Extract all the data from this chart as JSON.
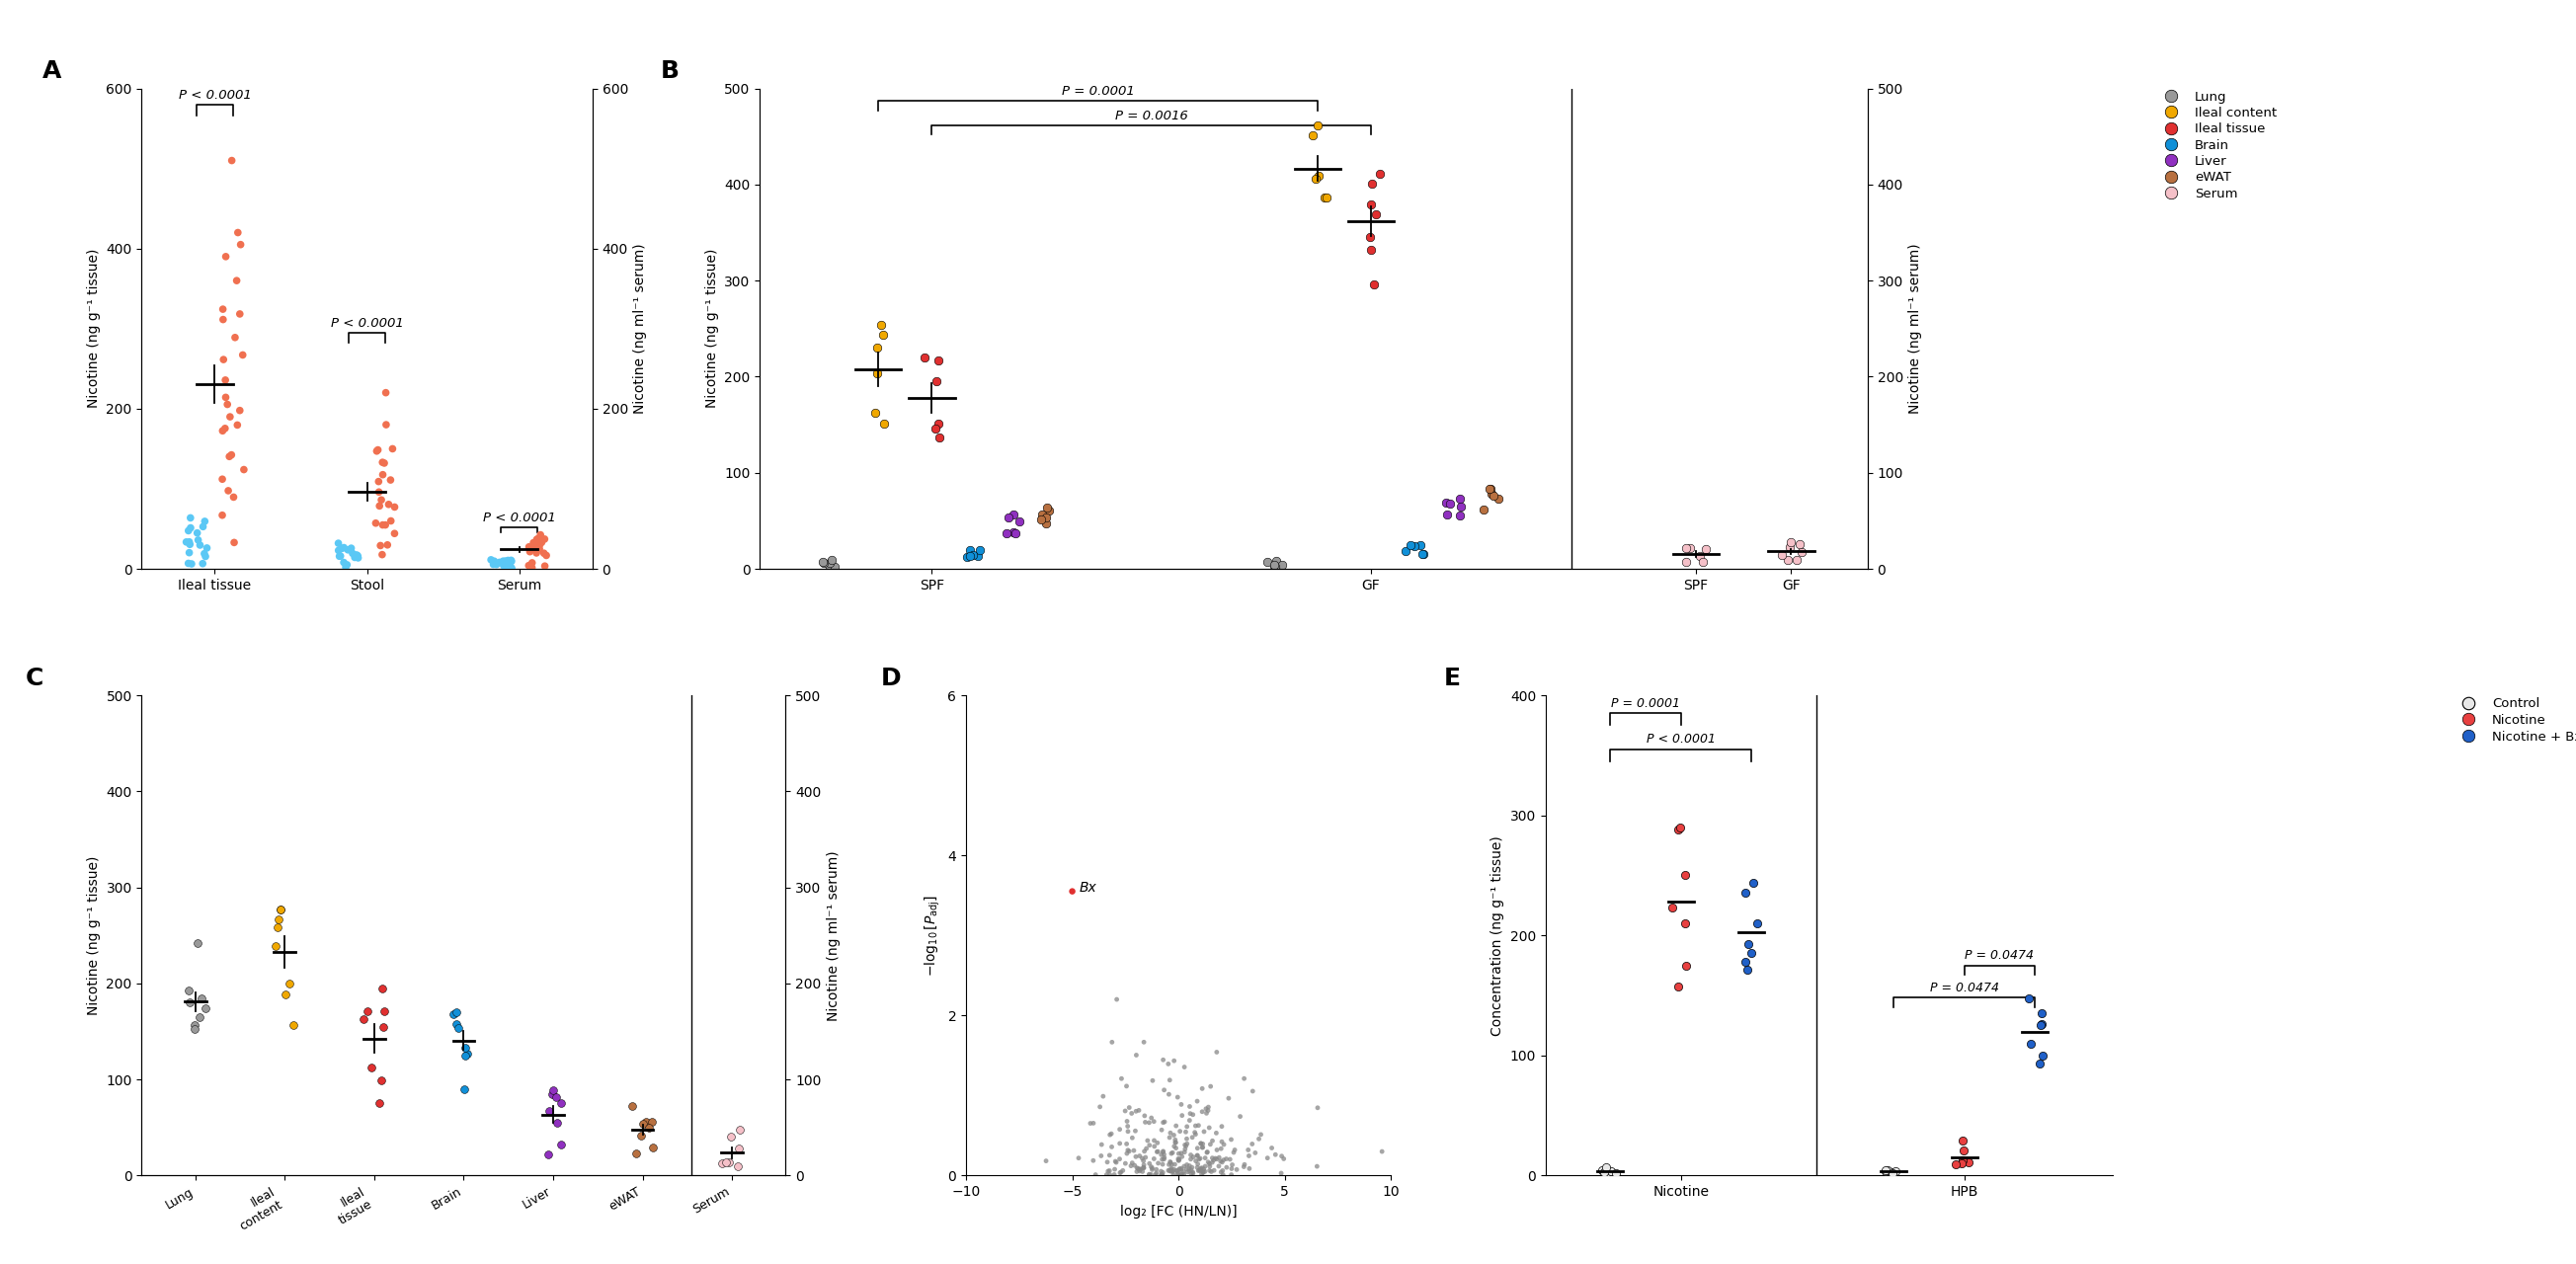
{
  "colors": {
    "nonsmoker": "#5bc8f5",
    "smoker": "#f07050",
    "lung": "#999999",
    "ileal_content": "#f0a800",
    "ileal_tissue": "#e03030",
    "brain": "#1090d8",
    "liver": "#9030c0",
    "ewat": "#b87040",
    "serum_b": "#f5c0c8",
    "control": "#e8e8e8",
    "nicotine": "#e84040",
    "nicotine_bx": "#2060c8"
  },
  "panel_A": {
    "ylabel_left": "Nicotine (ng g⁻¹ tissue)",
    "ylabel_right": "Nicotine (ng ml⁻¹ serum)",
    "ylim_left": [
      0,
      600
    ],
    "ylim_right": [
      0,
      600
    ],
    "yticks_left": [
      0,
      200,
      400,
      600
    ],
    "yticks_right": [
      0,
      200,
      400,
      600
    ]
  },
  "panel_B": {
    "ylabel_left": "Nicotine (ng g⁻¹ tissue)",
    "ylabel_right": "Nicotine (ng ml⁻¹ serum)",
    "ylim": [
      0,
      500
    ],
    "yticks": [
      0,
      100,
      200,
      300,
      400,
      500
    ]
  },
  "panel_C": {
    "ylabel_left": "Nicotine (ng g⁻¹ tissue)",
    "ylabel_right": "Nicotine (ng ml⁻¹ serum)",
    "ylim": [
      0,
      500
    ],
    "yticks": [
      0,
      100,
      200,
      300,
      400,
      500
    ]
  },
  "panel_D": {
    "xlabel": "log₂ [FC (HN/LN)]",
    "ylabel": "-log₁₀[ᴘₐᵈⁱ]",
    "xlim": [
      -10,
      10
    ],
    "ylim": [
      0,
      6
    ],
    "xticks": [
      -10,
      -5,
      0,
      5,
      10
    ],
    "yticks": [
      0,
      2,
      4,
      6
    ]
  },
  "panel_E": {
    "ylabel": "Concentration (ng g⁻¹ tissue)",
    "ylim": [
      0,
      400
    ],
    "yticks": [
      0,
      100,
      200,
      300,
      400
    ]
  }
}
